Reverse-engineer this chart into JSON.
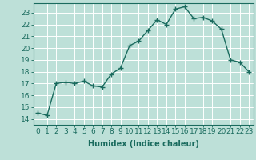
{
  "x": [
    0,
    1,
    2,
    3,
    4,
    5,
    6,
    7,
    8,
    9,
    10,
    11,
    12,
    13,
    14,
    15,
    16,
    17,
    18,
    19,
    20,
    21,
    22,
    23
  ],
  "y": [
    14.5,
    14.3,
    17.0,
    17.1,
    17.0,
    17.2,
    16.8,
    16.7,
    17.8,
    18.3,
    20.2,
    20.6,
    21.5,
    22.4,
    22.0,
    23.3,
    23.5,
    22.5,
    22.6,
    22.3,
    21.6,
    19.0,
    18.8,
    18.0
  ],
  "line_color": "#1a6b5e",
  "marker": "+",
  "markersize": 4,
  "linewidth": 1.0,
  "background_color": "#bde0d8",
  "grid_color": "#ffffff",
  "xlabel": "Humidex (Indice chaleur)",
  "xlim": [
    -0.5,
    23.5
  ],
  "ylim": [
    13.5,
    23.8
  ],
  "yticks": [
    14,
    15,
    16,
    17,
    18,
    19,
    20,
    21,
    22,
    23
  ],
  "xticks": [
    0,
    1,
    2,
    3,
    4,
    5,
    6,
    7,
    8,
    9,
    10,
    11,
    12,
    13,
    14,
    15,
    16,
    17,
    18,
    19,
    20,
    21,
    22,
    23
  ],
  "tick_color": "#1a6b5e",
  "label_fontsize": 7,
  "tick_fontsize": 6.5
}
